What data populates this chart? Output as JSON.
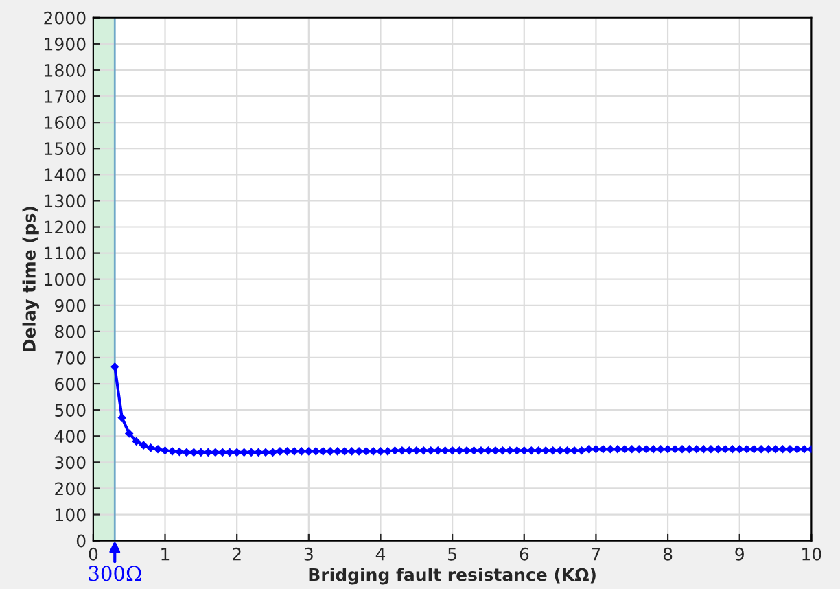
{
  "chart_data": {
    "type": "line",
    "xlabel": "Bridging fault resistance (KΩ)",
    "ylabel": "Delay time (ps)",
    "xlim": [
      0,
      10
    ],
    "xticks": [
      0,
      1,
      2,
      3,
      4,
      5,
      6,
      7,
      8,
      9,
      10
    ],
    "ylim": [
      0,
      2000
    ],
    "yticks": [
      0,
      100,
      200,
      300,
      400,
      500,
      600,
      700,
      800,
      900,
      1000,
      1100,
      1200,
      1300,
      1400,
      1500,
      1600,
      1700,
      1800,
      1900,
      2000
    ],
    "grid": true,
    "marker": "diamond",
    "line_style": "solid",
    "bands": [
      {
        "axis": "x",
        "from": 0,
        "to": 0.3,
        "color": "#d4f0dc"
      }
    ],
    "ref_lines": [
      {
        "axis": "x",
        "value": 0.3,
        "color": "#6fa8c8",
        "line_style": "solid"
      }
    ],
    "annotations": [
      {
        "text": "300Ω",
        "x": 0.3,
        "y": 0
      }
    ],
    "series": [
      {
        "color": "#0000ff",
        "x": [
          0.3,
          0.4,
          0.5,
          0.6,
          0.7,
          0.8,
          0.9,
          1.0,
          1.1,
          1.2,
          1.3,
          1.4,
          1.5,
          1.6,
          1.7,
          1.8,
          1.9,
          2.0,
          2.1,
          2.2,
          2.3,
          2.4,
          2.5,
          2.6,
          2.7,
          2.8,
          2.9,
          3.0,
          3.1,
          3.2,
          3.3,
          3.4,
          3.5,
          3.6,
          3.7,
          3.8,
          3.9,
          4.0,
          4.1,
          4.2,
          4.3,
          4.4,
          4.5,
          4.6,
          4.7,
          4.8,
          4.9,
          5.0,
          5.1,
          5.2,
          5.3,
          5.4,
          5.5,
          5.6,
          5.7,
          5.8,
          5.9,
          6.0,
          6.1,
          6.2,
          6.3,
          6.4,
          6.5,
          6.6,
          6.7,
          6.8,
          6.9,
          7.0,
          7.1,
          7.2,
          7.3,
          7.4,
          7.5,
          7.6,
          7.7,
          7.8,
          7.9,
          8.0,
          8.1,
          8.2,
          8.3,
          8.4,
          8.5,
          8.6,
          8.7,
          8.8,
          8.9,
          9.0,
          9.1,
          9.2,
          9.3,
          9.4,
          9.5,
          9.6,
          9.7,
          9.8,
          9.9,
          10.0
        ],
        "values": [
          665,
          470,
          410,
          380,
          365,
          355,
          350,
          345,
          342,
          340,
          338,
          338,
          338,
          338,
          338,
          338,
          338,
          338,
          338,
          338,
          338,
          338,
          338,
          342,
          342,
          342,
          342,
          342,
          342,
          342,
          342,
          342,
          342,
          342,
          342,
          342,
          342,
          342,
          342,
          345,
          345,
          345,
          345,
          345,
          345,
          345,
          345,
          345,
          345,
          345,
          345,
          345,
          345,
          345,
          345,
          345,
          345,
          345,
          345,
          345,
          345,
          345,
          345,
          345,
          345,
          345,
          350,
          350,
          350,
          350,
          350,
          350,
          350,
          350,
          350,
          350,
          350,
          350,
          350,
          350,
          350,
          350,
          350,
          350,
          350,
          350,
          350,
          350,
          350,
          350,
          350,
          350,
          350,
          350,
          350,
          350,
          350,
          350
        ]
      }
    ]
  }
}
